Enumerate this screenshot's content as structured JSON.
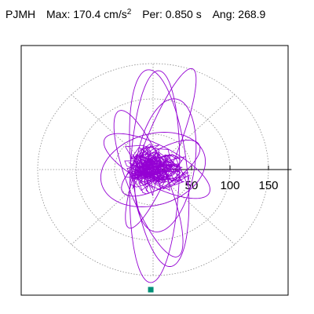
{
  "header": {
    "station": "PJMH",
    "max_label": "Max:",
    "max_value": "170.4 cm/s",
    "max_unit_power": "2",
    "per_label": "Per:",
    "per_value": "0.850 s",
    "ang_label": "Ang:",
    "ang_value": "268.9"
  },
  "chart_data": {
    "type": "scatter",
    "title": "",
    "xlabel": "",
    "ylabel": "",
    "radial_ticks": [
      50,
      100,
      150
    ],
    "tick_labels": [
      "50",
      "100",
      "150"
    ],
    "xlim": [
      -180,
      180
    ],
    "ylim": [
      -170,
      170
    ],
    "grid": "dashed polar rings and spokes",
    "series": [
      {
        "values": []
      }
    ],
    "peak_point": {
      "x": -3,
      "y": -170,
      "color": "#008f77"
    },
    "trace_color": "#9400d3"
  }
}
